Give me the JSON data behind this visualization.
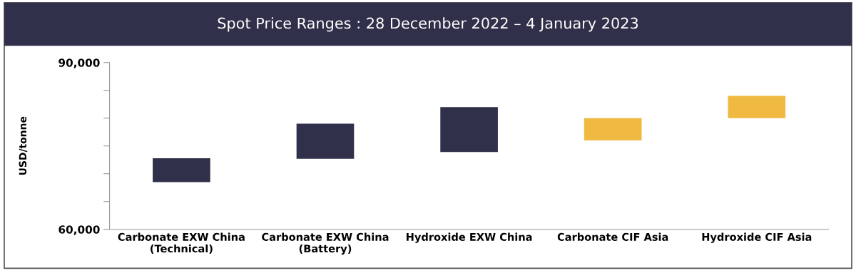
{
  "chart_data": {
    "type": "bar",
    "title": "Spot Price Ranges : 28 December 2022 – 4 January 2023",
    "ylabel": "USD/tonne",
    "categories": [
      "Carbonate EXW China\n(Technical)",
      "Carbonate EXW China\n(Battery)",
      "Hydroxide EXW China",
      "Carbonate CIF Asia",
      "Hydroxide CIF Asia"
    ],
    "values": [
      4300,
      6300,
      8100,
      4000,
      4000
    ],
    "base": [
      68500,
      72700,
      73900,
      76000,
      80000
    ],
    "colors": [
      "#30304a",
      "#30304a",
      "#30304a",
      "#f0b942",
      "#f0b942"
    ],
    "ylim": [
      60000,
      90000
    ],
    "yticks": [
      {
        "value": 60000,
        "label": "60,000"
      },
      {
        "value": 65000,
        "label": null
      },
      {
        "value": 70000,
        "label": null
      },
      {
        "value": 75000,
        "label": null
      },
      {
        "value": 80000,
        "label": null
      },
      {
        "value": 85000,
        "label": null
      },
      {
        "value": 90000,
        "label": "90,000"
      }
    ],
    "grid": false,
    "legend": false
  }
}
